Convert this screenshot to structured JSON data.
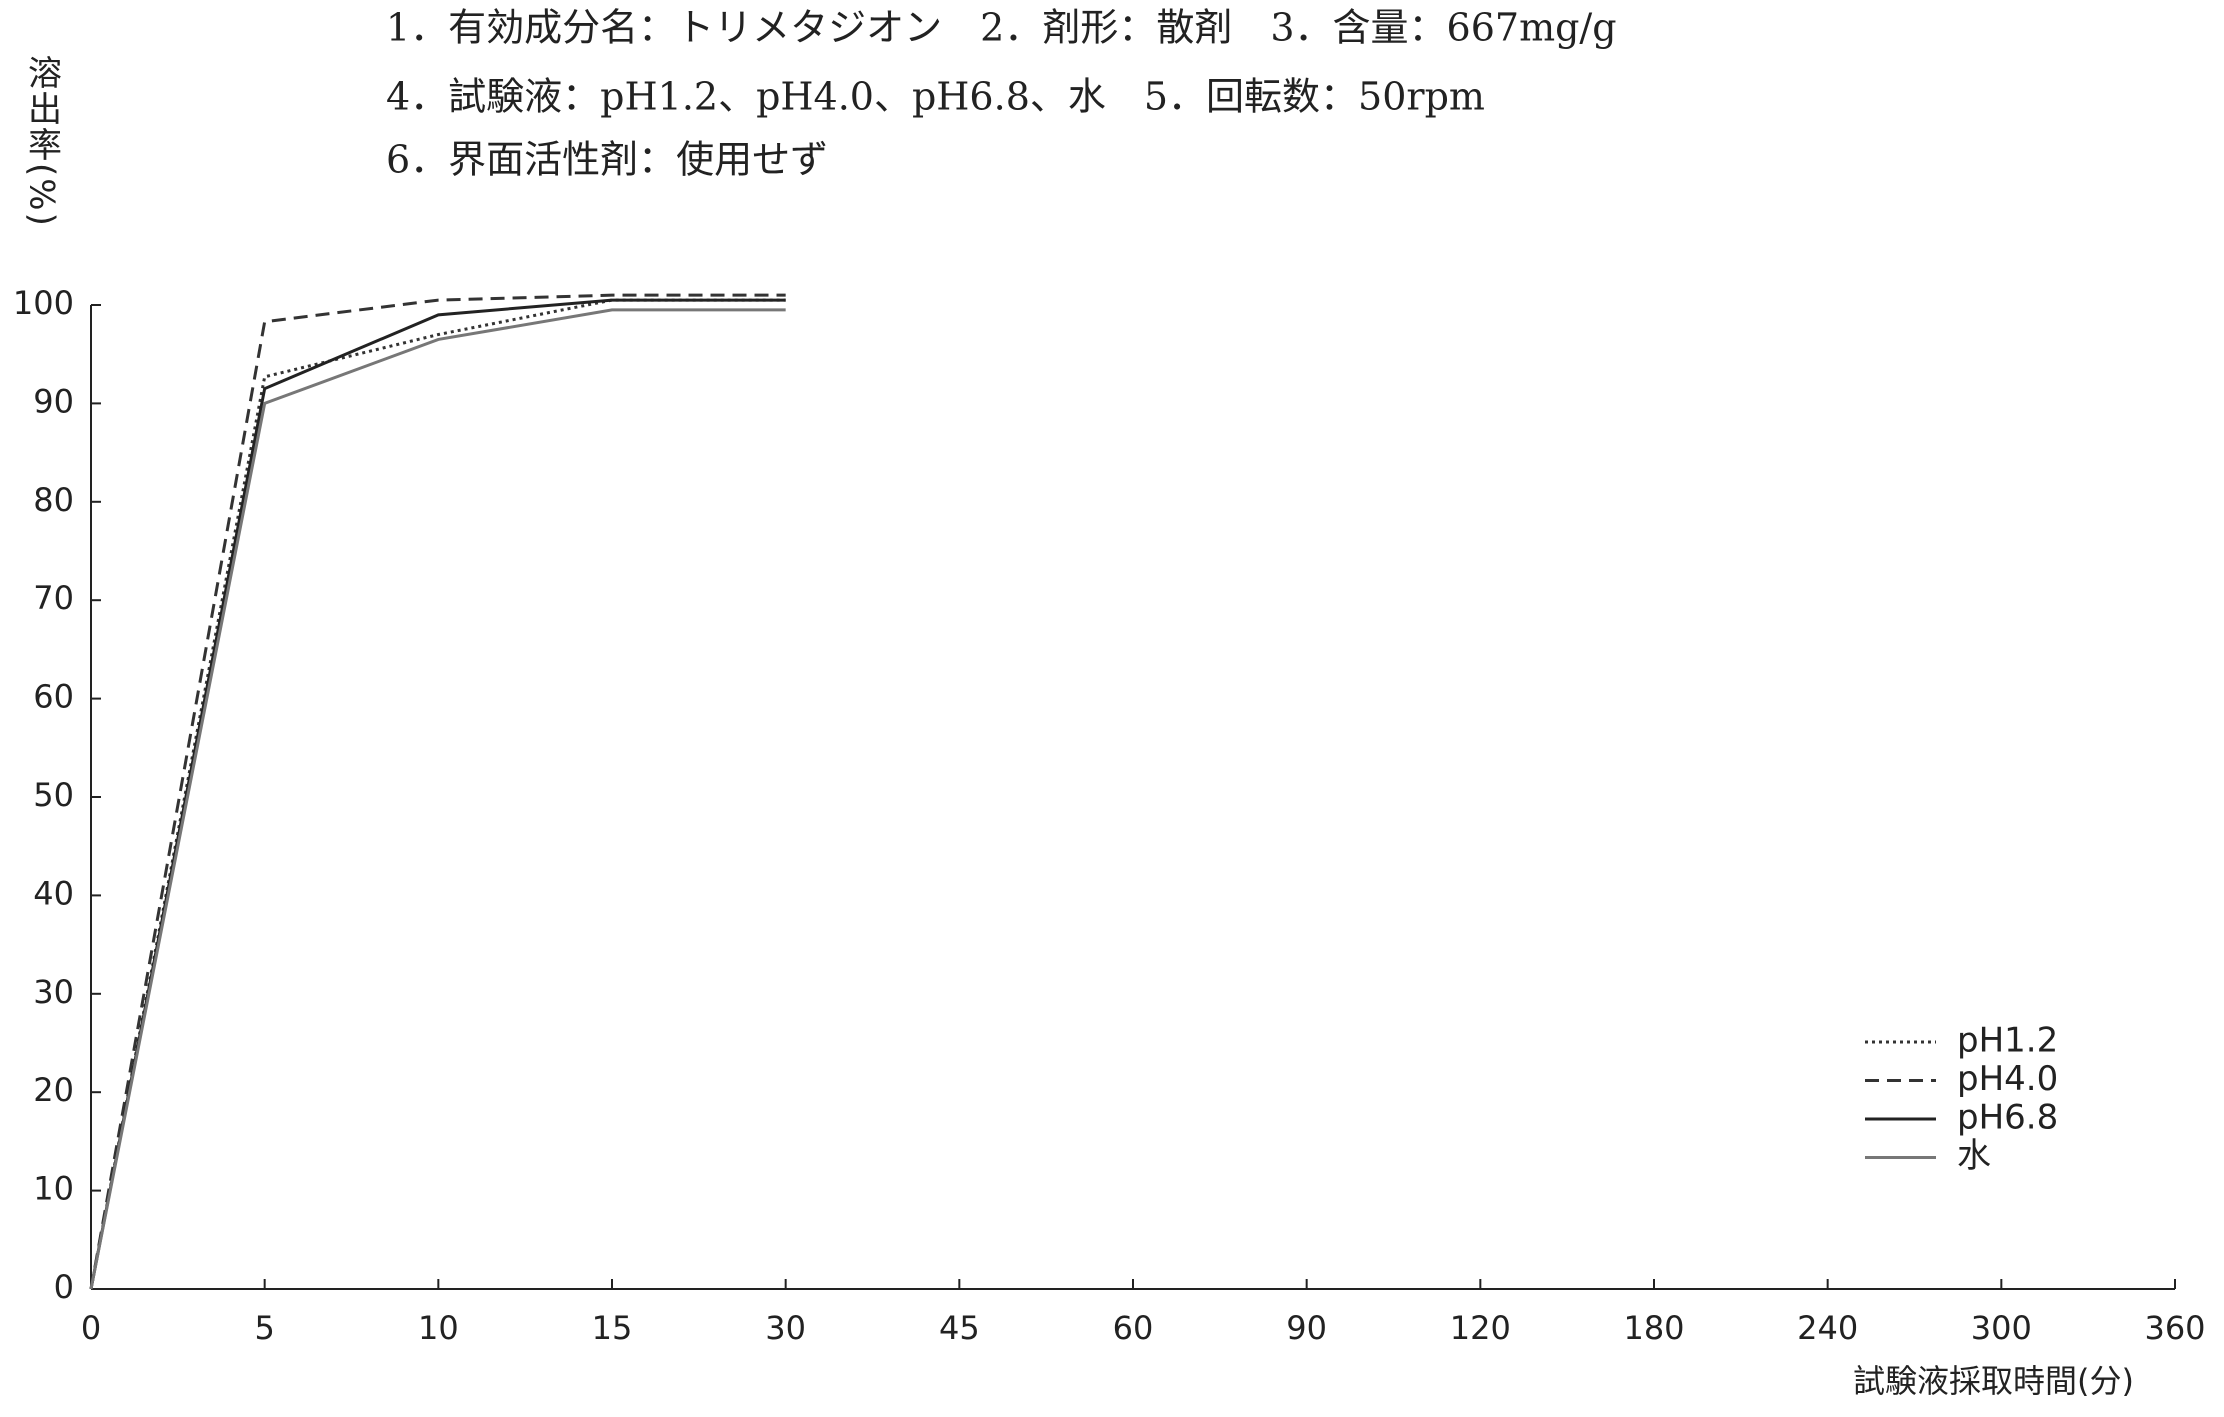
{
  "chart_data": {
    "type": "line",
    "title": [
      "1．有効成分名：トリメタジオン　2．剤形：散剤　3．含量：667mg/g",
      "4．試験液：pH1.2、pH4.0、pH6.8、水　5．回転数：50rpm",
      "6．界面活性剤：使用せず"
    ],
    "y_label": "溶出率(%)",
    "x_label": "試験液採取時間(分)",
    "categories": [
      "0",
      "5",
      "10",
      "15",
      "30",
      "45",
      "60",
      "90",
      "120",
      "180",
      "240",
      "300",
      "360"
    ],
    "series": [
      {
        "name": "pH1.2",
        "color": "#333333",
        "linestyle": "dotted",
        "values": [
          0,
          92.7,
          97,
          100.5,
          100.5,
          null,
          null,
          null,
          null,
          null,
          null,
          null,
          null
        ]
      },
      {
        "name": "pH4.0",
        "color": "#333333",
        "linestyle": "dashed",
        "values": [
          0,
          98.3,
          100.5,
          101,
          101,
          null,
          null,
          null,
          null,
          null,
          null,
          null,
          null
        ]
      },
      {
        "name": "pH6.8",
        "color": "#222222",
        "linestyle": "solid",
        "values": [
          0,
          91.5,
          99,
          100.5,
          100.5,
          null,
          null,
          null,
          null,
          null,
          null,
          null,
          null
        ]
      },
      {
        "name": "水",
        "color": "#777777",
        "linestyle": "solid",
        "values": [
          0,
          90,
          96.5,
          99.5,
          99.5,
          null,
          null,
          null,
          null,
          null,
          null,
          null,
          null
        ]
      }
    ],
    "ylim": [
      0,
      100
    ],
    "yticks": [
      0,
      10,
      20,
      30,
      40,
      50,
      60,
      70,
      80,
      90,
      100
    ],
    "grid": false,
    "legend": "lower right"
  }
}
